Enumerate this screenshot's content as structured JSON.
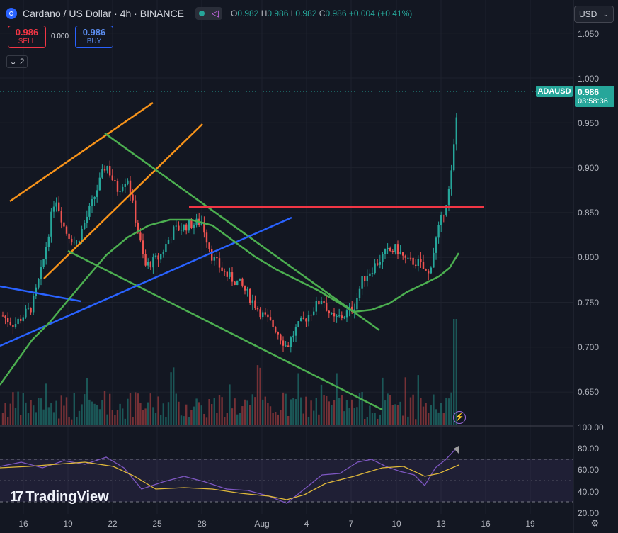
{
  "header": {
    "title": "Cardano / US Dollar · 4h · BINANCE",
    "ohlc": {
      "o_key": "O",
      "o": "0.982",
      "h_key": "H",
      "h": "0.986",
      "l_key": "L",
      "l": "0.982",
      "c_key": "C",
      "c": "0.986",
      "change": "+0.004 (+0.41%)"
    }
  },
  "trade": {
    "sell_price": "0.986",
    "sell_label": "SELL",
    "spread": "0.000",
    "buy_price": "0.986",
    "buy_label": "BUY"
  },
  "indicators_collapse": {
    "count": "2"
  },
  "currency": "USD",
  "price_axis": [
    "1.050",
    "1.000",
    "0.950",
    "0.900",
    "0.850",
    "0.800",
    "0.750",
    "0.700",
    "0.650",
    "100.00"
  ],
  "last_price": {
    "symbol": "ADAUSD",
    "price": "0.986",
    "countdown": "03:58:36"
  },
  "rsi_axis": [
    "80.00",
    "60.00",
    "40.00",
    "20.00"
  ],
  "time_axis": [
    "16",
    "19",
    "22",
    "25",
    "28",
    "Aug",
    "4",
    "7",
    "10",
    "13",
    "16",
    "19"
  ],
  "branding": {
    "name": "TradingView"
  },
  "colors": {
    "up": "#26a69a",
    "down": "#ef5350",
    "accent": "#2962ff",
    "rsi": "#7e57c2"
  },
  "icons": {
    "logo": "cardano-logo-icon",
    "settings": "gear-icon",
    "flash": "lightning-icon"
  }
}
